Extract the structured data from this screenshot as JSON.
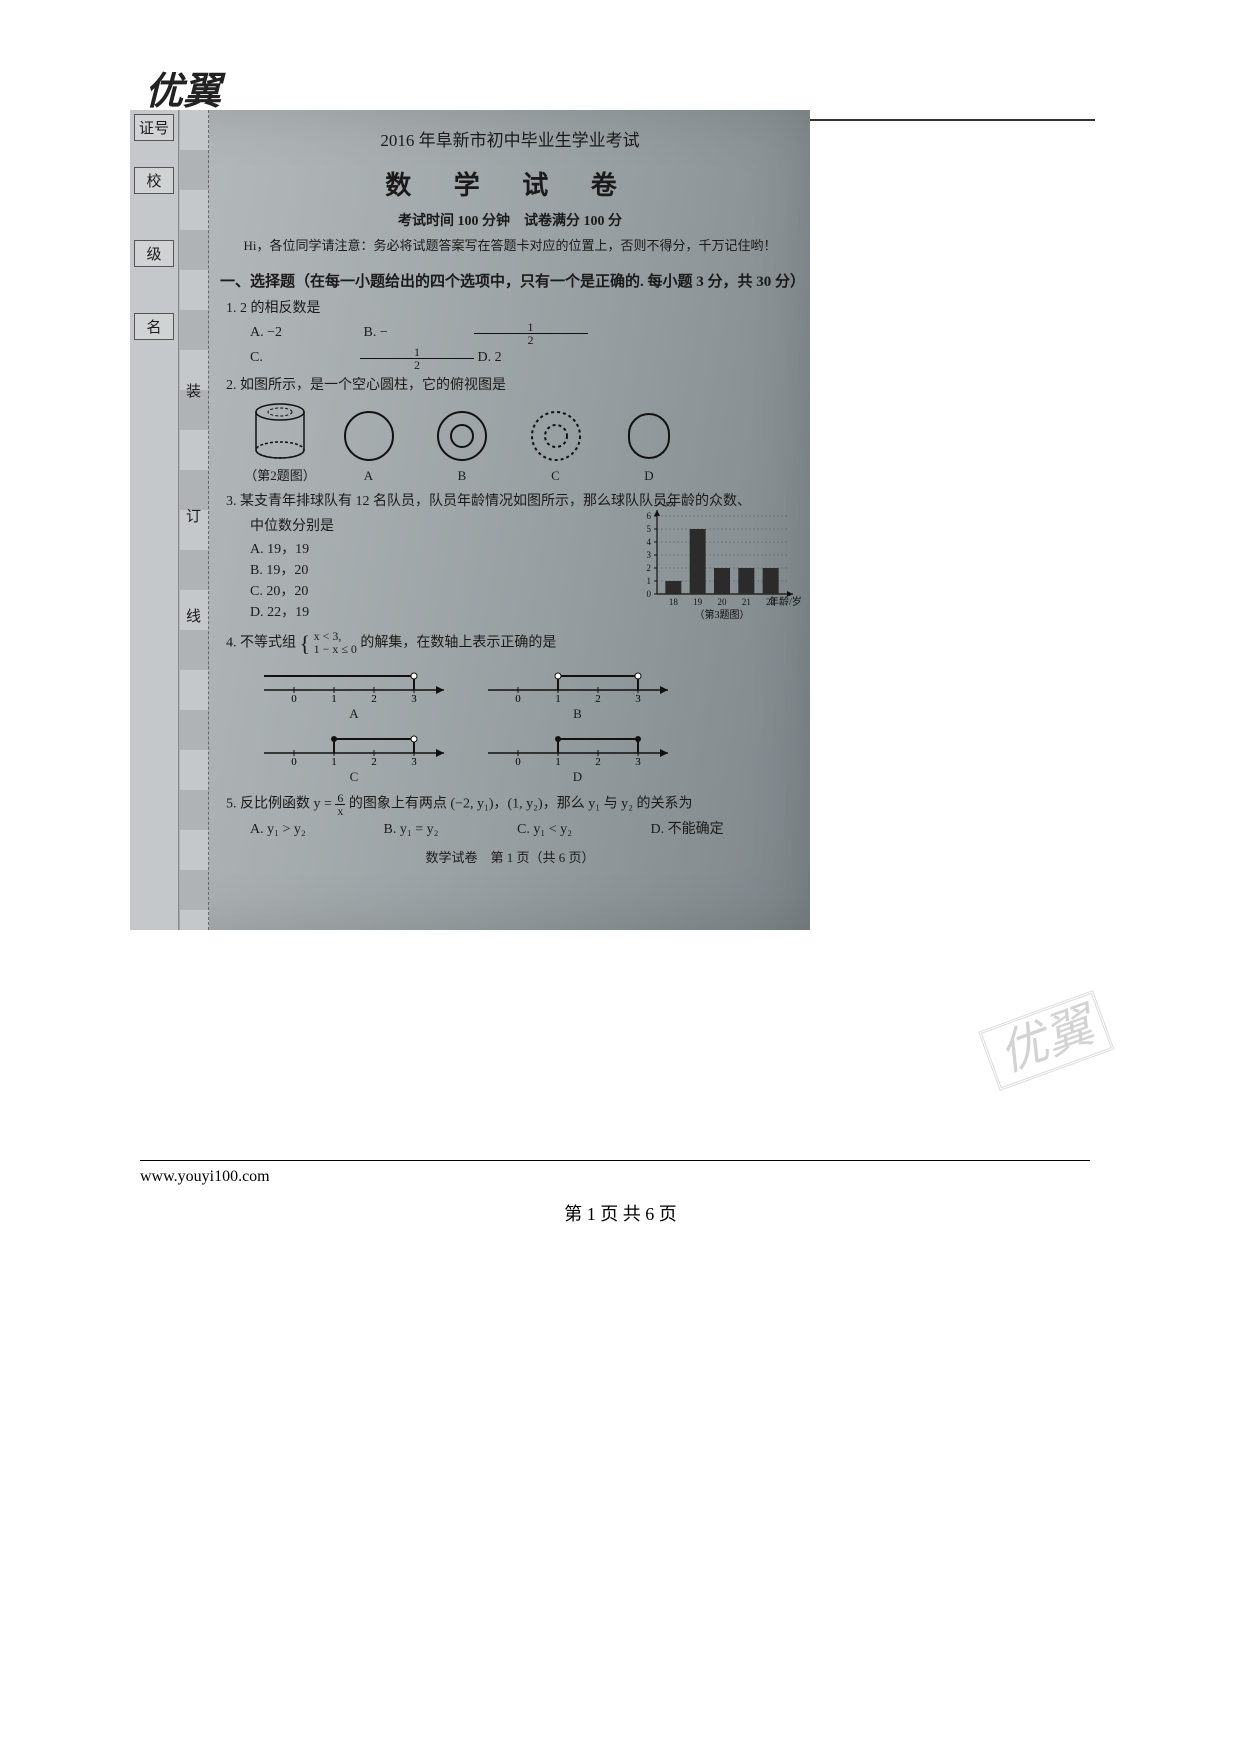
{
  "logo": "优翼",
  "side_labels": {
    "zhenghao": "证号",
    "xiao": "校",
    "ji": "级",
    "ming": "名"
  },
  "dash_labels": {
    "zhuang": "装",
    "ding": "订",
    "xian": "线"
  },
  "header": {
    "line1": "2016 年阜新市初中毕业生学业考试",
    "line2": "数 学 试 卷",
    "sub": "考试时间 100 分钟　试卷满分 100 分",
    "note": "Hi，各位同学请注意：务必将试题答案写在答题卡对应的位置上，否则不得分，千万记住哟！"
  },
  "section1": "一、选择题（在每一小题给出的四个选项中，只有一个是正确的. 每小题 3 分，共 30 分）",
  "q1": {
    "stem": "1. 2 的相反数是",
    "A": "A.  −2",
    "B_pre": "B.  −",
    "B_num": "1",
    "B_den": "2",
    "C_pre": "C.  ",
    "C_num": "1",
    "C_den": "2",
    "D": "D.  2"
  },
  "q2": {
    "stem": "2. 如图所示，是一个空心圆柱，它的俯视图是",
    "caption": "（第2题图）",
    "A": "A",
    "B": "B",
    "C": "C",
    "D": "D"
  },
  "q3": {
    "stem": "3. 某支青年排球队有 12 名队员，队员年龄情况如图所示，那么球队队员年龄的众数、",
    "stem2": "中位数分别是",
    "A": "A. 19，19",
    "B": "B. 19，20",
    "C": "C. 20，20",
    "D": "D. 22，19",
    "chart": {
      "type": "bar",
      "ylabel": "人数",
      "xlabel": "年龄/岁",
      "categories": [
        "18",
        "19",
        "20",
        "21",
        "22"
      ],
      "values": [
        1,
        5,
        2,
        2,
        2
      ],
      "yticks": [
        0,
        1,
        2,
        3,
        4,
        5,
        6
      ],
      "bar_color": "#2b2b2b",
      "axis_color": "#111",
      "grid_color": "#555",
      "caption": "（第3题图）"
    }
  },
  "q4": {
    "stem_pre": "4. 不等式组",
    "sys_top": "x < 3,",
    "sys_bot": "1 − x ≤ 0",
    "stem_post": " 的解集，在数轴上表示正确的是",
    "A": "A",
    "B": "B",
    "C": "C",
    "D": "D",
    "numberlines": {
      "ticks": [
        0,
        1,
        2,
        3
      ],
      "A": {
        "seg": [
          null,
          3
        ],
        "left_open": true,
        "right_open": true,
        "closed1": false
      },
      "B": {
        "seg": [
          1,
          3
        ],
        "left_open": true,
        "right_open": true
      },
      "C": {
        "seg": [
          1,
          3
        ],
        "left_open": false,
        "right_open": true
      },
      "D": {
        "seg": [
          1,
          3
        ],
        "left_open": false,
        "right_open": false
      }
    }
  },
  "q5": {
    "stem_pre": "5. 反比例函数 y = ",
    "frac_n": "6",
    "frac_d": "x",
    "stem_mid": " 的图象上有两点 (−2, y₁)，(1, y₂)，那么 y₁ 与 y₂ 的关系为",
    "A": "A.  y₁ > y₂",
    "B": "B.  y₁ = y₂",
    "C": "C.  y₁ < y₂",
    "D": "D. 不能确定"
  },
  "inner_footer": "数学试卷　第 1 页（共 6 页）",
  "footer_url": "www.youyi100.com",
  "footer_page": "第 1 页 共 6 页"
}
